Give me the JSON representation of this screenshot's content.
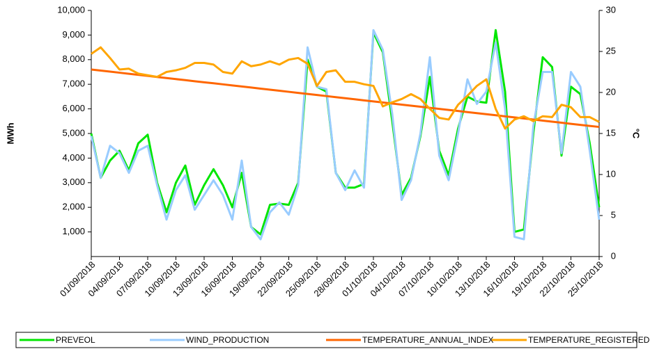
{
  "chart_data": {
    "type": "line",
    "y_label": "MWh",
    "y2_label": "°C",
    "categories": [
      "01/09/2018",
      null,
      null,
      "04/09/2018",
      null,
      null,
      "07/09/2018",
      null,
      null,
      "10/09/2018",
      null,
      null,
      "13/09/2018",
      null,
      null,
      "16/09/2018",
      null,
      null,
      "19/09/2018",
      null,
      null,
      "22/09/2018",
      null,
      null,
      "25/09/2018",
      null,
      null,
      "28/09/2018",
      null,
      null,
      "01/10/2018",
      null,
      null,
      "04/10/2018",
      null,
      null,
      "07/10/2018",
      null,
      null,
      "10/10/2018",
      null,
      null,
      "13/10/2018",
      null,
      null,
      "16/10/2018",
      null,
      null,
      "19/10/2018",
      null,
      null,
      "22/10/2018",
      null,
      null,
      "25/10/2018"
    ],
    "ylim": [
      0,
      10000
    ],
    "yticks": [
      {
        "value": 1000,
        "label": "1,000"
      },
      {
        "value": 2000,
        "label": "2,000"
      },
      {
        "value": 3000,
        "label": "3,000"
      },
      {
        "value": 4000,
        "label": "4,000"
      },
      {
        "value": 5000,
        "label": "5,000"
      },
      {
        "value": 6000,
        "label": "6,000"
      },
      {
        "value": 7000,
        "label": "7,000"
      },
      {
        "value": 8000,
        "label": "8,000"
      },
      {
        "value": 9000,
        "label": "9,000"
      },
      {
        "value": 10000,
        "label": "10,000"
      }
    ],
    "y2lim": [
      0,
      30
    ],
    "y2ticks": [
      0,
      5,
      10,
      15,
      20,
      25,
      30
    ],
    "legend": "bottom",
    "series": [
      {
        "name": "PREVEOL",
        "color": "#00e600",
        "values": [
          5000,
          3200,
          3900,
          4300,
          3500,
          4600,
          4950,
          3000,
          1800,
          3000,
          3700,
          2100,
          2900,
          3550,
          2900,
          2000,
          3400,
          1200,
          900,
          2100,
          2150,
          2100,
          3000,
          8000,
          6900,
          6700,
          3400,
          2800,
          2800,
          2950,
          9100,
          8300,
          5500,
          2500,
          3200,
          4900,
          7300,
          4300,
          3300,
          5200,
          6500,
          6300,
          6250,
          9200,
          6700,
          1000,
          1100,
          5000,
          8100,
          7700,
          4100,
          6900,
          6600,
          4600,
          2000
        ]
      },
      {
        "name": "WIND_PRODUCTION",
        "color": "#99ccff",
        "values": [
          4900,
          3200,
          4500,
          4200,
          3400,
          4300,
          4500,
          2900,
          1500,
          2700,
          3300,
          1900,
          2500,
          3100,
          2500,
          1500,
          3900,
          1200,
          700,
          1800,
          2200,
          1700,
          2900,
          8500,
          6900,
          6800,
          3400,
          2700,
          3500,
          2800,
          9200,
          8400,
          5800,
          2300,
          3100,
          5000,
          8100,
          4100,
          3100,
          5000,
          7200,
          6200,
          6700,
          8700,
          6000,
          800,
          700,
          5300,
          7500,
          7500,
          4200,
          7500,
          6900,
          4300,
          1500
        ]
      },
      {
        "name": "TEMPERATURE_ANNUAL_INDEX",
        "color": "#ff6600",
        "axis": "y2",
        "values": [
          22.8,
          22.67,
          22.54,
          22.41,
          22.28,
          22.15,
          22.02,
          21.89,
          21.76,
          21.63,
          21.5,
          21.37,
          21.24,
          21.12,
          20.99,
          20.86,
          20.73,
          20.6,
          20.47,
          20.34,
          20.21,
          20.08,
          19.95,
          19.82,
          19.69,
          19.56,
          19.43,
          19.3,
          19.17,
          19.04,
          18.91,
          18.78,
          18.65,
          18.52,
          18.39,
          18.26,
          18.13,
          18.0,
          17.87,
          17.74,
          17.61,
          17.48,
          17.35,
          17.22,
          17.09,
          16.96,
          16.83,
          16.7,
          16.57,
          16.44,
          16.31,
          16.18,
          16.05,
          15.92,
          15.8
        ]
      },
      {
        "name": "TEMPERATURE_REGISTERED",
        "color": "#ffa500",
        "axis": "y2",
        "values": [
          24.7,
          25.5,
          24.2,
          22.8,
          22.9,
          22.3,
          22.1,
          21.9,
          22.5,
          22.7,
          23.0,
          23.6,
          23.6,
          23.4,
          22.5,
          22.3,
          23.8,
          23.2,
          23.4,
          23.8,
          23.4,
          24.0,
          24.2,
          23.5,
          20.8,
          22.5,
          22.7,
          21.3,
          21.3,
          21.0,
          20.8,
          18.3,
          18.8,
          19.2,
          19.8,
          19.2,
          18.0,
          16.9,
          16.7,
          18.5,
          19.6,
          20.8,
          21.6,
          18.0,
          15.6,
          16.7,
          17.1,
          16.5,
          17.1,
          17.0,
          18.5,
          18.2,
          17.0,
          17.0,
          16.4
        ]
      }
    ]
  }
}
